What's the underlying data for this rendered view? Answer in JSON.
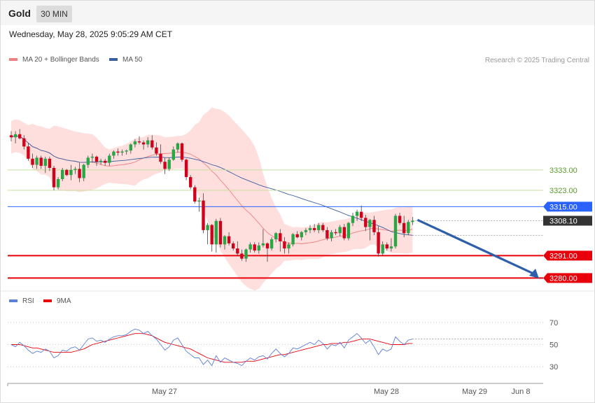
{
  "header": {
    "title": "Gold",
    "interval": "30 MIN"
  },
  "timestamp": "Wednesday, May 28, 2025 9:05:29 AM CET",
  "legend": {
    "ma20": "MA 20 + Bollinger Bands",
    "ma50": "MA 50",
    "credit": "Research © 2025 Trading Central",
    "rsi": "RSI",
    "ma9": "9MA"
  },
  "colors": {
    "up": "#27a844",
    "down": "#d0021b",
    "band": "#ffdede",
    "ma20": "#f08080",
    "ma50": "#3a5fa0",
    "rsi": "#5b7ed6",
    "ma9": "#e8000b",
    "resistance": "#c5e0a0",
    "pivot": "#2962ff",
    "support": "#e8000b",
    "arrow": "#2e5fa8"
  },
  "chart_data": [
    {
      "type": "candlestick",
      "ylim": [
        3275,
        3382
      ],
      "xlabels": [
        "May 27",
        "May 28",
        "May 29",
        "Jun 8"
      ],
      "levels": [
        {
          "label": "3333.00",
          "value": 3333,
          "kind": "resistance"
        },
        {
          "label": "3323.00",
          "value": 3323,
          "kind": "resistance"
        },
        {
          "label": "3315.00",
          "value": 3315,
          "kind": "pivot"
        },
        {
          "label": "3308.10",
          "value": 3308.1,
          "kind": "last"
        },
        {
          "label": "3291.00",
          "value": 3291,
          "kind": "support"
        },
        {
          "label": "3280.00",
          "value": 3280,
          "kind": "support"
        }
      ],
      "ohlc": [
        [
          3350.0,
          3352.0,
          3347.0,
          3349.0
        ],
        [
          3349.0,
          3352.0,
          3346.0,
          3350.5
        ],
        [
          3350.5,
          3353.0,
          3348.0,
          3348.5
        ],
        [
          3348.5,
          3350.0,
          3343.0,
          3344.5
        ],
        [
          3344.5,
          3346.0,
          3337.5,
          3338.5
        ],
        [
          3338.5,
          3341.0,
          3334.0,
          3335.5
        ],
        [
          3335.5,
          3340.0,
          3333.5,
          3339.0
        ],
        [
          3339.0,
          3340.0,
          3333.5,
          3335.0
        ],
        [
          3335.0,
          3339.5,
          3331.5,
          3338.5
        ],
        [
          3338.5,
          3339.5,
          3332.5,
          3334.0
        ],
        [
          3334.0,
          3335.0,
          3323.0,
          3324.5
        ],
        [
          3324.5,
          3329.5,
          3323.5,
          3328.5
        ],
        [
          3328.5,
          3334.0,
          3327.5,
          3333.0
        ],
        [
          3333.0,
          3333.5,
          3330.0,
          3330.5
        ],
        [
          3330.5,
          3335.5,
          3328.0,
          3333.0
        ],
        [
          3333.0,
          3334.5,
          3331.0,
          3333.5
        ],
        [
          3333.5,
          3336.5,
          3327.0,
          3329.0
        ],
        [
          3329.0,
          3336.0,
          3327.5,
          3335.5
        ],
        [
          3335.5,
          3340.0,
          3334.0,
          3339.0
        ],
        [
          3339.0,
          3341.0,
          3336.5,
          3339.5
        ],
        [
          3339.5,
          3340.0,
          3335.0,
          3337.0
        ],
        [
          3337.0,
          3338.5,
          3335.5,
          3337.5
        ],
        [
          3337.5,
          3338.5,
          3335.0,
          3336.5
        ],
        [
          3336.5,
          3341.0,
          3335.0,
          3340.0
        ],
        [
          3340.0,
          3342.5,
          3338.5,
          3342.0
        ],
        [
          3342.0,
          3343.5,
          3340.0,
          3341.5
        ],
        [
          3341.5,
          3343.0,
          3340.0,
          3342.0
        ],
        [
          3342.0,
          3343.0,
          3340.5,
          3342.5
        ],
        [
          3342.5,
          3346.0,
          3341.0,
          3345.5
        ],
        [
          3345.5,
          3348.0,
          3344.0,
          3347.0
        ],
        [
          3347.0,
          3349.5,
          3345.5,
          3346.5
        ],
        [
          3346.5,
          3347.5,
          3343.0,
          3345.5
        ],
        [
          3345.5,
          3349.0,
          3344.0,
          3347.5
        ],
        [
          3347.5,
          3350.0,
          3343.0,
          3344.0
        ],
        [
          3344.0,
          3346.5,
          3340.0,
          3341.0
        ],
        [
          3341.0,
          3345.5,
          3336.0,
          3337.0
        ],
        [
          3337.0,
          3339.0,
          3331.0,
          3333.5
        ],
        [
          3333.5,
          3339.0,
          3332.5,
          3338.0
        ],
        [
          3338.0,
          3344.5,
          3337.5,
          3343.0
        ],
        [
          3343.0,
          3346.5,
          3341.5,
          3346.0
        ],
        [
          3346.0,
          3346.5,
          3337.0,
          3338.0
        ],
        [
          3338.0,
          3338.5,
          3328.0,
          3329.5
        ],
        [
          3329.5,
          3330.5,
          3323.5,
          3324.5
        ],
        [
          3324.5,
          3325.5,
          3316.5,
          3317.5
        ],
        [
          3317.5,
          3319.5,
          3312.5,
          3318.0
        ],
        [
          3318.0,
          3321.5,
          3302.0,
          3303.5
        ],
        [
          3303.5,
          3307.0,
          3296.5,
          3306.0
        ],
        [
          3306.0,
          3306.5,
          3293.0,
          3296.5
        ],
        [
          3296.5,
          3309.0,
          3292.5,
          3308.0
        ],
        [
          3308.0,
          3309.5,
          3295.0,
          3296.5
        ],
        [
          3296.5,
          3301.0,
          3294.0,
          3300.5
        ],
        [
          3300.5,
          3302.5,
          3296.0,
          3297.0
        ],
        [
          3297.0,
          3298.0,
          3293.5,
          3294.5
        ],
        [
          3294.5,
          3298.0,
          3291.0,
          3292.0
        ],
        [
          3292.0,
          3294.0,
          3288.5,
          3289.5
        ],
        [
          3289.5,
          3294.5,
          3288.0,
          3294.0
        ],
        [
          3294.0,
          3297.5,
          3292.5,
          3296.5
        ],
        [
          3296.5,
          3297.5,
          3292.5,
          3293.5
        ],
        [
          3293.5,
          3297.5,
          3292.0,
          3296.0
        ],
        [
          3296.0,
          3304.0,
          3295.0,
          3297.0
        ],
        [
          3297.0,
          3297.5,
          3288.0,
          3294.5
        ],
        [
          3294.5,
          3300.0,
          3293.5,
          3299.0
        ],
        [
          3299.0,
          3302.5,
          3297.5,
          3302.0
        ],
        [
          3302.0,
          3304.0,
          3293.0,
          3298.0
        ],
        [
          3298.0,
          3300.0,
          3292.0,
          3294.5
        ],
        [
          3294.5,
          3297.5,
          3292.0,
          3296.5
        ],
        [
          3296.5,
          3302.0,
          3295.5,
          3301.5
        ],
        [
          3301.5,
          3303.0,
          3299.5,
          3300.0
        ],
        [
          3300.0,
          3303.0,
          3298.5,
          3302.5
        ],
        [
          3302.5,
          3304.5,
          3301.0,
          3303.5
        ],
        [
          3303.5,
          3306.0,
          3302.0,
          3304.5
        ],
        [
          3304.5,
          3306.5,
          3302.5,
          3303.5
        ],
        [
          3303.5,
          3307.0,
          3302.0,
          3306.0
        ],
        [
          3306.0,
          3307.0,
          3302.5,
          3303.5
        ],
        [
          3303.5,
          3305.0,
          3298.5,
          3299.5
        ],
        [
          3299.5,
          3303.5,
          3298.0,
          3302.5
        ],
        [
          3302.5,
          3304.0,
          3301.0,
          3302.0
        ],
        [
          3302.0,
          3306.0,
          3300.5,
          3305.0
        ],
        [
          3305.0,
          3306.5,
          3298.5,
          3299.5
        ],
        [
          3299.5,
          3307.5,
          3298.5,
          3307.0
        ],
        [
          3307.0,
          3312.0,
          3305.5,
          3310.5
        ],
        [
          3310.5,
          3313.5,
          3308.0,
          3312.5
        ],
        [
          3312.5,
          3315.5,
          3308.0,
          3309.5
        ],
        [
          3309.5,
          3311.0,
          3303.0,
          3305.0
        ],
        [
          3305.0,
          3309.0,
          3298.5,
          3308.5
        ],
        [
          3308.5,
          3310.5,
          3301.0,
          3302.5
        ],
        [
          3302.5,
          3305.5,
          3290.5,
          3292.0
        ],
        [
          3292.0,
          3298.0,
          3291.0,
          3296.5
        ],
        [
          3296.5,
          3297.5,
          3293.5,
          3294.5
        ],
        [
          3294.5,
          3299.5,
          3293.0,
          3295.5
        ],
        [
          3295.5,
          3311.5,
          3294.5,
          3310.5
        ],
        [
          3310.5,
          3312.0,
          3306.0,
          3307.0
        ],
        [
          3307.0,
          3310.5,
          3300.0,
          3302.0
        ],
        [
          3302.0,
          3308.5,
          3301.0,
          3307.5
        ],
        [
          3307.5,
          3310.0,
          3306.0,
          3308.1
        ]
      ]
    },
    {
      "type": "line",
      "name": "RSI",
      "ylim": [
        20,
        80
      ],
      "yticks": [
        70,
        50,
        30
      ],
      "series": [
        {
          "name": "RSI",
          "values": [
            50,
            48,
            52,
            49,
            45,
            42,
            44,
            43,
            46,
            44,
            38,
            40,
            45,
            44,
            47,
            48,
            45,
            50,
            55,
            56,
            53,
            54,
            52,
            55,
            57,
            58,
            58,
            59,
            62,
            64,
            63,
            60,
            62,
            58,
            55,
            50,
            45,
            48,
            54,
            56,
            50,
            44,
            41,
            38,
            38,
            32,
            36,
            31,
            40,
            34,
            38,
            36,
            34,
            33,
            31,
            35,
            38,
            36,
            39,
            40,
            37,
            42,
            46,
            42,
            39,
            42,
            47,
            46,
            48,
            50,
            52,
            50,
            54,
            51,
            46,
            50,
            49,
            52,
            47,
            54,
            57,
            60,
            56,
            51,
            54,
            48,
            41,
            46,
            44,
            46,
            57,
            53,
            50,
            54,
            55
          ]
        },
        {
          "name": "9MA",
          "values": [
            50,
            50,
            50,
            49,
            48,
            47,
            47,
            46,
            45,
            44,
            43,
            43,
            43,
            43,
            43,
            44,
            45,
            46,
            48,
            50,
            51,
            52,
            53,
            54,
            55,
            56,
            57,
            58,
            59,
            60,
            60,
            60,
            59,
            58,
            56,
            54,
            52,
            51,
            50,
            49,
            48,
            47,
            46,
            44,
            42,
            40,
            38,
            37,
            36,
            35,
            34,
            34,
            34,
            34,
            34,
            35,
            35,
            35,
            36,
            37,
            38,
            39,
            40,
            41,
            41,
            42,
            43,
            44,
            45,
            46,
            47,
            48,
            49,
            50,
            50,
            51,
            51,
            51,
            52,
            52,
            53,
            54,
            55,
            55,
            55,
            54,
            53,
            52,
            51,
            50,
            50,
            50,
            50,
            51,
            51
          ]
        }
      ]
    }
  ]
}
